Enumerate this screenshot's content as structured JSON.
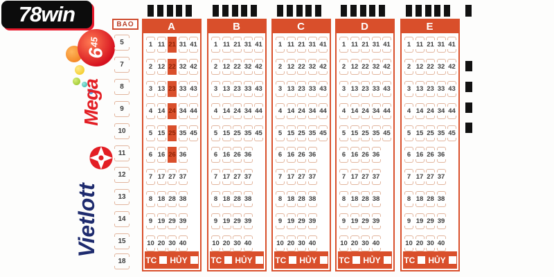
{
  "branding": {
    "site_logo": "78win",
    "mega": {
      "name": "Mega",
      "ball_number": "6",
      "ball_sub": "45"
    },
    "vietlott": "Vietlott"
  },
  "slip": {
    "bao_label": "BAO",
    "bao_options": [
      "5",
      "7",
      "8",
      "9",
      "10",
      "11",
      "12",
      "13",
      "14",
      "15",
      "18"
    ],
    "column_labels": [
      "A",
      "B",
      "C",
      "D",
      "E"
    ],
    "number_rows": [
      [
        "1",
        "11",
        "21",
        "31",
        "41"
      ],
      [
        "2",
        "12",
        "22",
        "32",
        "42"
      ],
      [
        "3",
        "13",
        "23",
        "33",
        "43"
      ],
      [
        "4",
        "14",
        "24",
        "34",
        "44"
      ],
      [
        "5",
        "15",
        "25",
        "35",
        "45"
      ],
      [
        "6",
        "16",
        "26",
        "36"
      ],
      [
        "7",
        "17",
        "27",
        "37"
      ],
      [
        "8",
        "18",
        "28",
        "38"
      ],
      [
        "9",
        "19",
        "29",
        "39"
      ],
      [
        "10",
        "20",
        "30",
        "40"
      ]
    ],
    "selections": {
      "A": [
        "21",
        "22",
        "23",
        "24",
        "25",
        "26"
      ],
      "B": [],
      "C": [],
      "D": [],
      "E": []
    },
    "footer": {
      "tc": "TC",
      "huy": "HỦY"
    }
  },
  "colors": {
    "accent": "#d94f2b",
    "selected_number_text": "#8f2406",
    "bracket_mark": "#e2b49c",
    "number_text": "#3b3b3b",
    "logo_border_red": "#e8192c",
    "vietlott_navy": "#1e2b6e",
    "mega_red": "#e31e24",
    "timing_mark": "#111111"
  }
}
